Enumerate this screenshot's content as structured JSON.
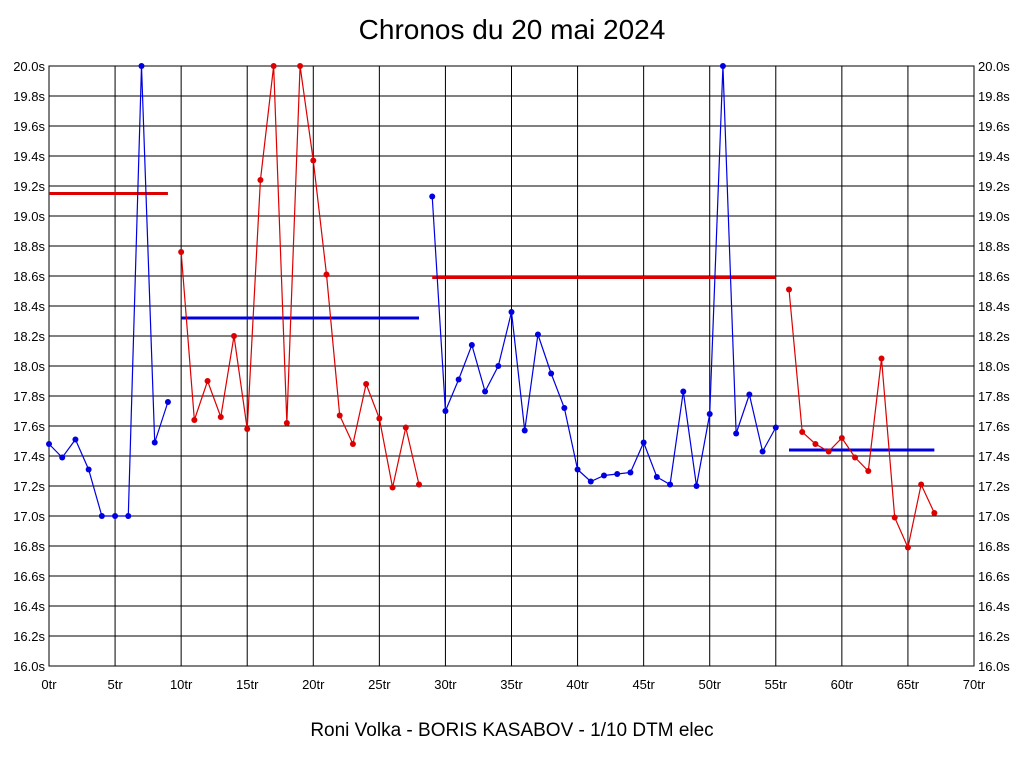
{
  "chart_data": {
    "type": "line",
    "title": "Chronos du 20 mai 2024",
    "subtitle": "Roni Volka - BORIS KASABOV - 1/10 DTM elec",
    "xlabel": "",
    "ylabel": "",
    "xlim": [
      0,
      70
    ],
    "ylim": [
      16.0,
      20.0
    ],
    "grid": true,
    "x_ticks": [
      "0tr",
      "5tr",
      "10tr",
      "15tr",
      "20tr",
      "25tr",
      "30tr",
      "35tr",
      "40tr",
      "45tr",
      "50tr",
      "55tr",
      "60tr",
      "65tr",
      "70tr"
    ],
    "y_ticks": [
      "16.0s",
      "16.2s",
      "16.4s",
      "16.6s",
      "16.8s",
      "17.0s",
      "17.2s",
      "17.4s",
      "17.6s",
      "17.8s",
      "18.0s",
      "18.2s",
      "18.4s",
      "18.6s",
      "18.8s",
      "19.0s",
      "19.2s",
      "19.4s",
      "19.6s",
      "19.8s",
      "20.0s"
    ],
    "series": [
      {
        "color": "#0000e0",
        "points": [
          [
            0,
            17.48
          ],
          [
            1,
            17.39
          ],
          [
            2,
            17.51
          ],
          [
            3,
            17.31
          ],
          [
            4,
            17.0
          ],
          [
            5,
            17.0
          ],
          [
            6,
            17.0
          ],
          [
            7,
            20.0
          ],
          [
            8,
            17.49
          ],
          [
            9,
            17.76
          ]
        ],
        "average": {
          "x": [
            0,
            9
          ],
          "y": 19.15,
          "color": "#dd0000"
        }
      },
      {
        "color": "#dd0000",
        "points": [
          [
            10,
            18.76
          ],
          [
            11,
            17.64
          ],
          [
            12,
            17.9
          ],
          [
            13,
            17.66
          ],
          [
            14,
            18.2
          ],
          [
            15,
            17.58
          ],
          [
            16,
            19.24
          ],
          [
            17,
            20.0
          ],
          [
            18,
            17.62
          ],
          [
            19,
            20.0
          ],
          [
            20,
            19.37
          ],
          [
            21,
            18.61
          ],
          [
            22,
            17.67
          ],
          [
            23,
            17.48
          ],
          [
            24,
            17.88
          ],
          [
            25,
            17.65
          ],
          [
            26,
            17.19
          ],
          [
            27,
            17.59
          ],
          [
            28,
            17.21
          ]
        ],
        "average": {
          "x": [
            10,
            28
          ],
          "y": 18.32,
          "color": "#0000e0"
        }
      },
      {
        "color": "#0000e0",
        "points": [
          [
            29,
            19.13
          ],
          [
            30,
            17.7
          ],
          [
            31,
            17.91
          ],
          [
            32,
            18.14
          ],
          [
            33,
            17.83
          ],
          [
            34,
            18.0
          ],
          [
            35,
            18.36
          ],
          [
            36,
            17.57
          ],
          [
            37,
            18.21
          ],
          [
            38,
            17.95
          ],
          [
            39,
            17.72
          ],
          [
            40,
            17.31
          ],
          [
            41,
            17.23
          ],
          [
            42,
            17.27
          ],
          [
            43,
            17.28
          ],
          [
            44,
            17.29
          ],
          [
            45,
            17.49
          ],
          [
            46,
            17.26
          ],
          [
            47,
            17.21
          ],
          [
            48,
            17.83
          ],
          [
            49,
            17.2
          ],
          [
            50,
            17.68
          ],
          [
            51,
            20.0
          ],
          [
            52,
            17.55
          ],
          [
            53,
            17.81
          ],
          [
            54,
            17.43
          ],
          [
            55,
            17.59
          ]
        ],
        "average": {
          "x": [
            29,
            55
          ],
          "y": 18.59,
          "color": "#dd0000"
        }
      },
      {
        "color": "#dd0000",
        "points": [
          [
            56,
            18.51
          ],
          [
            57,
            17.56
          ],
          [
            58,
            17.48
          ],
          [
            59,
            17.43
          ],
          [
            60,
            17.52
          ],
          [
            61,
            17.39
          ],
          [
            62,
            17.3
          ],
          [
            63,
            18.05
          ],
          [
            64,
            16.99
          ],
          [
            65,
            16.79
          ],
          [
            66,
            17.21
          ],
          [
            67,
            17.02
          ]
        ],
        "average": {
          "x": [
            56,
            67
          ],
          "y": 17.44,
          "color": "#0000e0"
        }
      }
    ]
  }
}
